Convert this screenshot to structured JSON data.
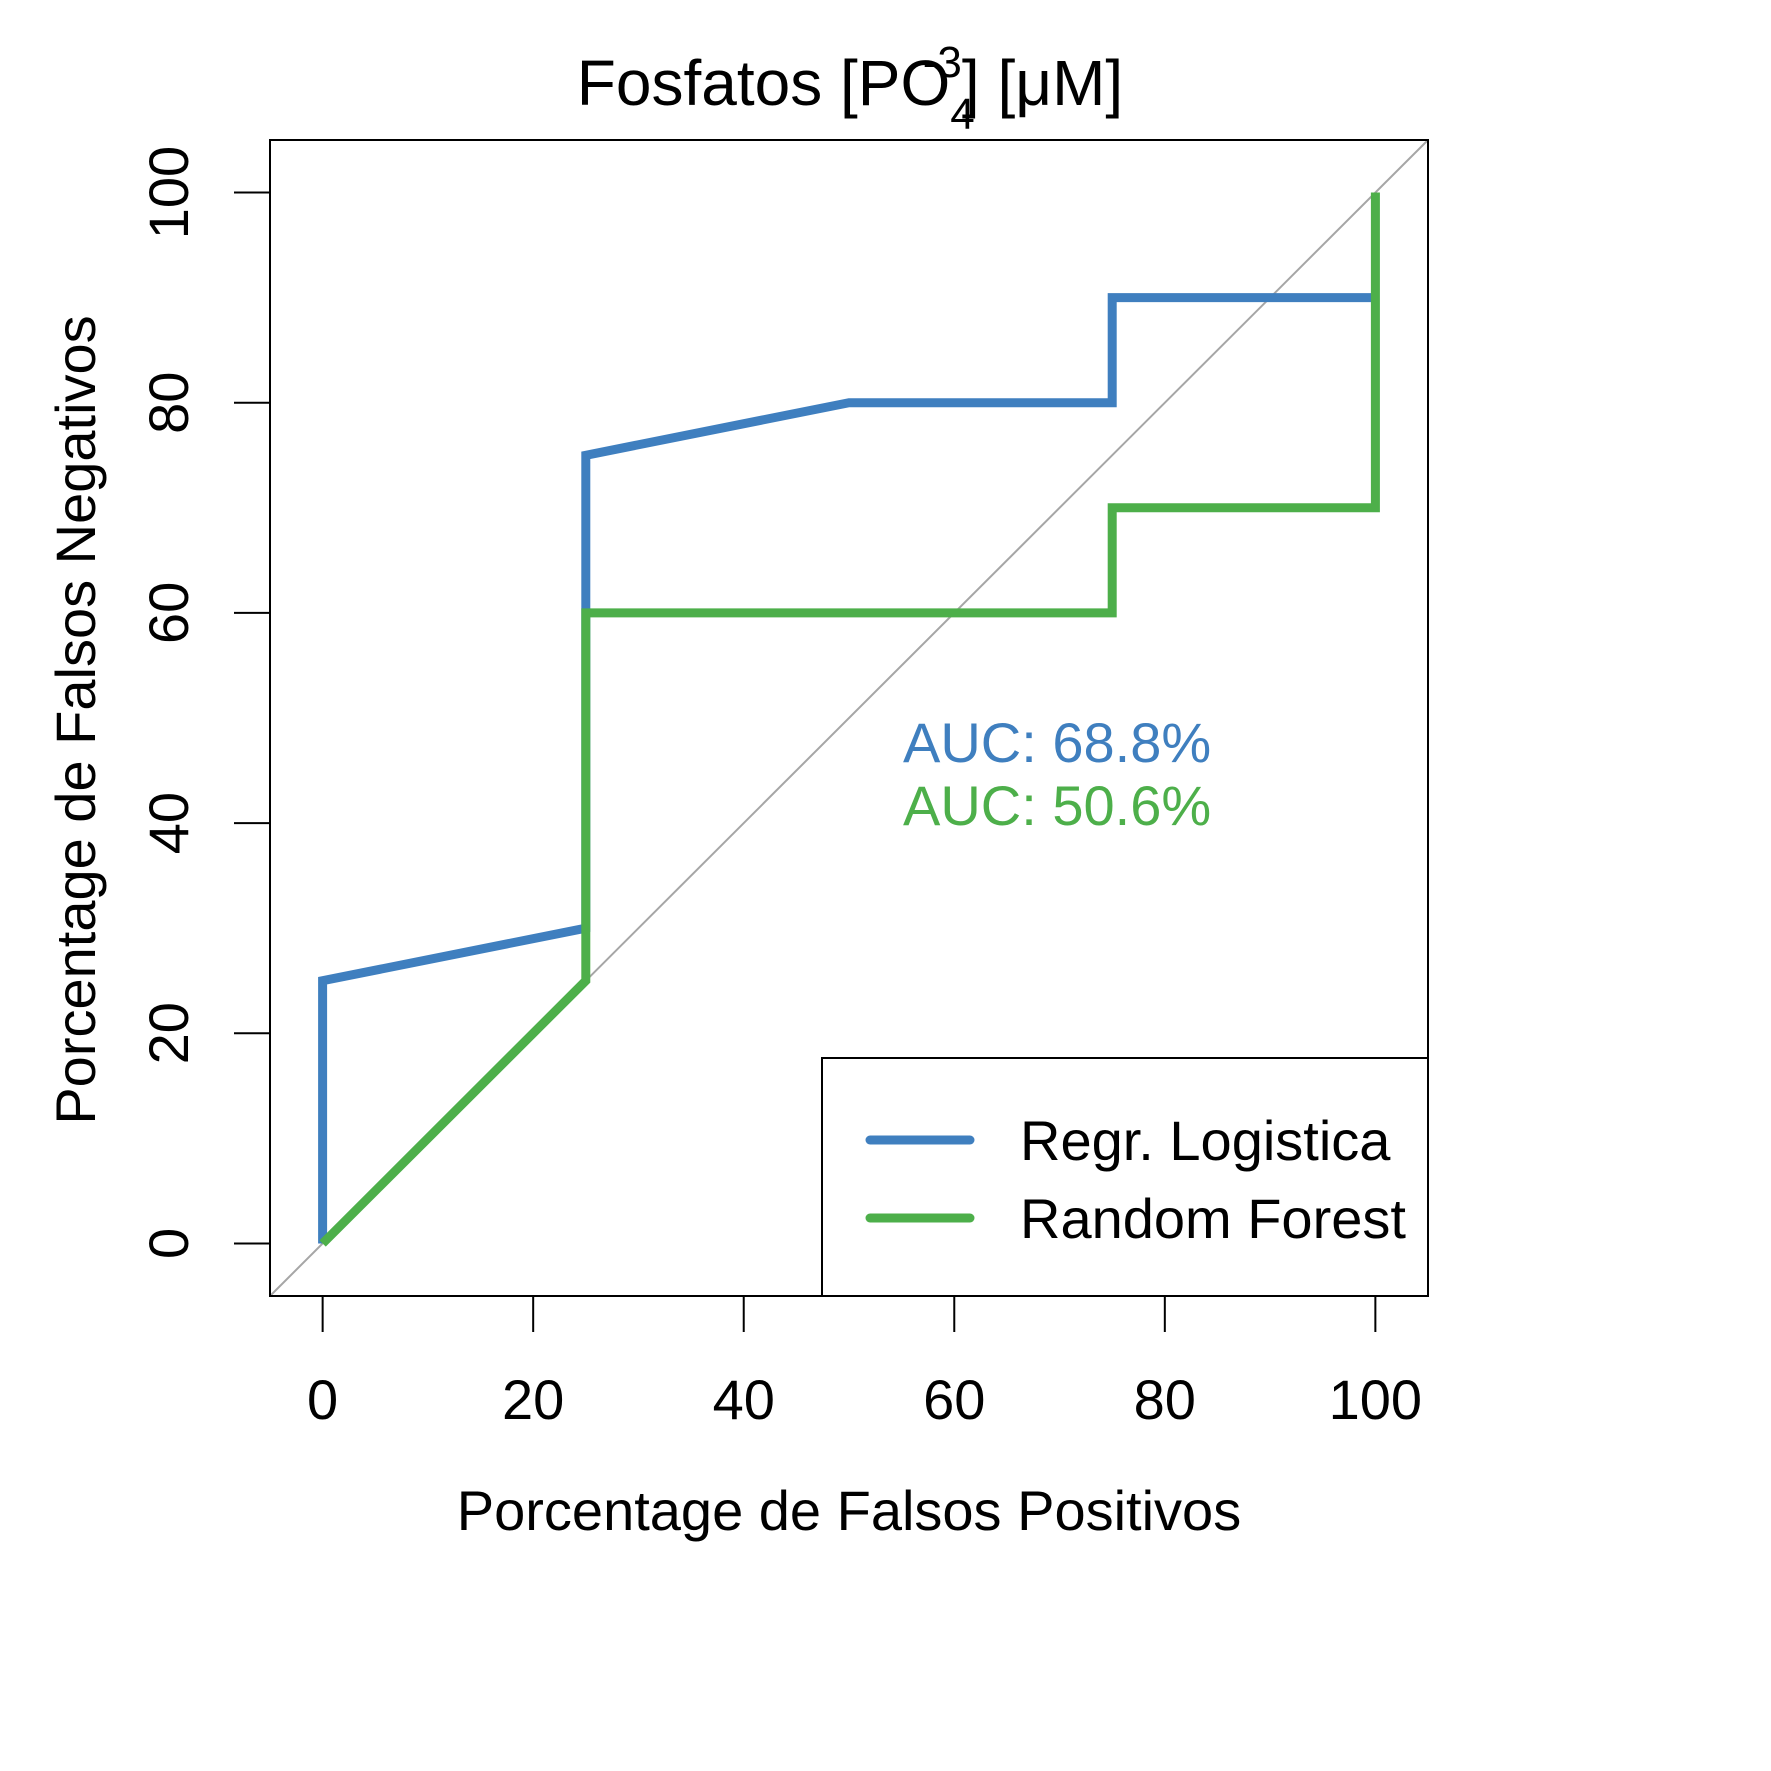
{
  "chart_data": {
    "type": "line",
    "title": {
      "main": "Fosfatos [PO",
      "subscript": "4",
      "superscript": "-3",
      "suffix": "] [μM]"
    },
    "xlabel": "Porcentage de Falsos Positivos",
    "ylabel": "Porcentage de Falsos Negativos",
    "xlim": [
      -5,
      105
    ],
    "ylim": [
      -5,
      105
    ],
    "xticks": [
      "0",
      "20",
      "40",
      "60",
      "80",
      "100"
    ],
    "yticks": [
      "0",
      "20",
      "40",
      "60",
      "80",
      "100"
    ],
    "grid": false,
    "legend_position": "bottom-right",
    "reference_line": {
      "from": [
        -5,
        -5
      ],
      "to": [
        105,
        105
      ],
      "color": "#a6a6a6"
    },
    "series": [
      {
        "name": "Regr. Logistica",
        "color": "#3f7fbf",
        "points": [
          [
            0,
            0
          ],
          [
            0,
            25
          ],
          [
            25,
            30
          ],
          [
            25,
            75
          ],
          [
            50,
            80
          ],
          [
            75,
            80
          ],
          [
            75,
            90
          ],
          [
            100,
            90
          ]
        ]
      },
      {
        "name": "Random Forest",
        "color": "#4daf4a",
        "points": [
          [
            0,
            0
          ],
          [
            25,
            25
          ],
          [
            25,
            60
          ],
          [
            75,
            60
          ],
          [
            75,
            70
          ],
          [
            100,
            70
          ],
          [
            100,
            100
          ]
        ]
      }
    ],
    "annotations": [
      {
        "text": "AUC: 68.8%",
        "color": "#3f7fbf"
      },
      {
        "text": "AUC: 50.6%",
        "color": "#4daf4a"
      }
    ]
  }
}
